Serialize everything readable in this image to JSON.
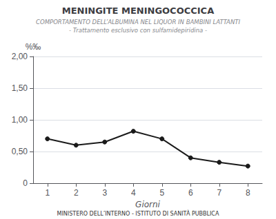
{
  "chart_data": {
    "type": "line",
    "title": "MENINGITE MENINGOCOCCICA",
    "subtitle": [
      "COMPORTAMENTO DELL’ALBUMINA NEL LIQUOR IN BAMBINI LATTANTI",
      "- Trattamento esclusivo con sulfamidepiridina -"
    ],
    "footer": "MINISTERO DELL’INTERNO - ISTITUTO DI SANITÀ PUBBLICA",
    "xlabel": "Giorni",
    "ylabel": "%‰",
    "x": [
      1,
      2,
      3,
      4,
      5,
      6,
      7,
      8
    ],
    "values": [
      0.7,
      0.6,
      0.65,
      0.82,
      0.7,
      0.4,
      0.33,
      0.27
    ],
    "xlim": [
      0.5,
      8.5
    ],
    "xticks": [
      1,
      2,
      3,
      4,
      5,
      6,
      7,
      8
    ],
    "ylim": [
      0,
      2.0
    ],
    "yticks": [
      0,
      {
        "value": 0.5,
        "label": "0,50"
      },
      {
        "value": 1.0,
        "label": "1,00"
      },
      {
        "value": 1.5,
        "label": "1,50"
      },
      {
        "value": 2.0,
        "label": "2,00"
      }
    ],
    "grid": true,
    "color": "#1a1a1a",
    "marker": "circle"
  }
}
